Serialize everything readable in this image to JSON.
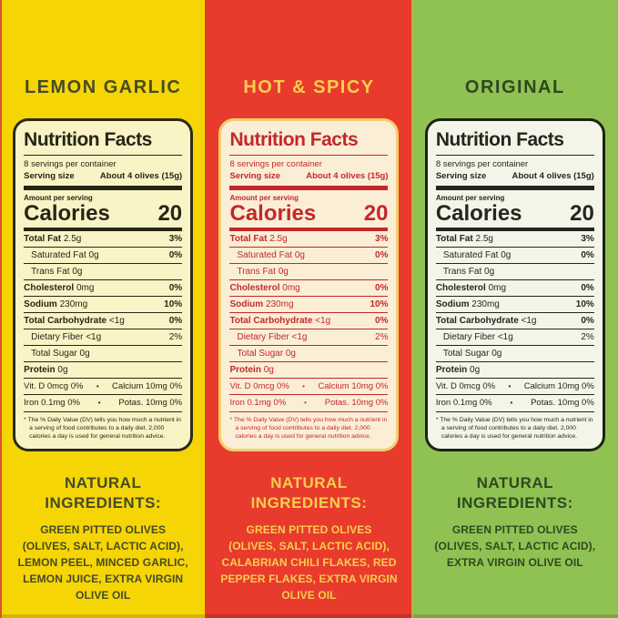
{
  "panels": [
    {
      "id": "lemon-garlic",
      "title": "LEMON GARLIC",
      "ingredients_heading": "NATURAL INGREDIENTS:",
      "ingredients": "GREEN PITTED OLIVES\n(OLIVES, SALT, LACTIC ACID),\nLEMON PEEL, MINCED GARLIC,\nLEMON JUICE, EXTRA VIRGIN\nOLIVE OIL",
      "colors": {
        "background": "#F6D504",
        "title_text": "#454B28",
        "card_background": "#FAF3C6",
        "card_border": "#2B2B18",
        "card_text": "#262616",
        "ingredients_text": "#454B28"
      }
    },
    {
      "id": "hot-spicy",
      "title": "HOT & SPICY",
      "ingredients_heading": "NATURAL INGREDIENTS:",
      "ingredients": "GREEN PITTED OLIVES\n(OLIVES, SALT, LACTIC ACID),\nCALABRIAN CHILI FLAKES, RED\nPEPPER FLAKES, EXTRA VIRGIN\nOLIVE OIL",
      "colors": {
        "background": "#E93A2E",
        "title_text": "#F7CF4D",
        "card_background": "#FBEED6",
        "card_border": "#F3CF6C",
        "card_text": "#C3282A",
        "ingredients_text": "#F7CF4D"
      }
    },
    {
      "id": "original",
      "title": "ORIGINAL",
      "ingredients_heading": "NATURAL INGREDIENTS:",
      "ingredients": "GREEN PITTED OLIVES\n(OLIVES, SALT, LACTIC ACID),\nEXTRA VIRGIN OLIVE OIL",
      "colors": {
        "background": "#90C253",
        "title_text": "#2F481F",
        "card_background": "#F2F5E8",
        "card_border": "#1C2413",
        "card_text": "#26261F",
        "ingredients_text": "#2F481F"
      }
    }
  ],
  "nutrition": {
    "title": "Nutrition Facts",
    "servings": "8 servings per container",
    "serving_size_label": "Serving size",
    "serving_size_value": "About 4 olives (15g)",
    "amount_label": "Amount per serving",
    "calories_label": "Calories",
    "calories_value": "20",
    "rows": [
      {
        "label": "Total Fat",
        "value": "2.5g",
        "dv": "3%"
      },
      {
        "label": "Saturated Fat",
        "value": "0g",
        "dv": "0%"
      },
      {
        "label": "Trans Fat",
        "value": "0g",
        "dv": ""
      },
      {
        "label": "Cholesterol",
        "value": "0mg",
        "dv": "0%"
      },
      {
        "label": "Sodium",
        "value": "230mg",
        "dv": "10%"
      },
      {
        "label": "Total Carbohydrate",
        "value": "<1g",
        "dv": "0%"
      },
      {
        "label": "Dietary Fiber",
        "value": "<1g",
        "dv": "2%"
      },
      {
        "label": "Total Sugar",
        "value": "0g",
        "dv": ""
      },
      {
        "label": "Protein",
        "value": "0g",
        "dv": ""
      }
    ],
    "vitamins": [
      {
        "left": "Vit. D 0mcg 0%",
        "separator": "•",
        "right": "Calcium 10mg 0%"
      },
      {
        "left": "Iron 0.1mg 0%",
        "separator": "•",
        "right": "Potas. 10mg 0%"
      }
    ],
    "footnote": "* The % Daily Value (DV) tells you how much a nutrient in a serving of food contributes to a daily diet. 2,000 calories a day is used for general nutrition advice."
  }
}
